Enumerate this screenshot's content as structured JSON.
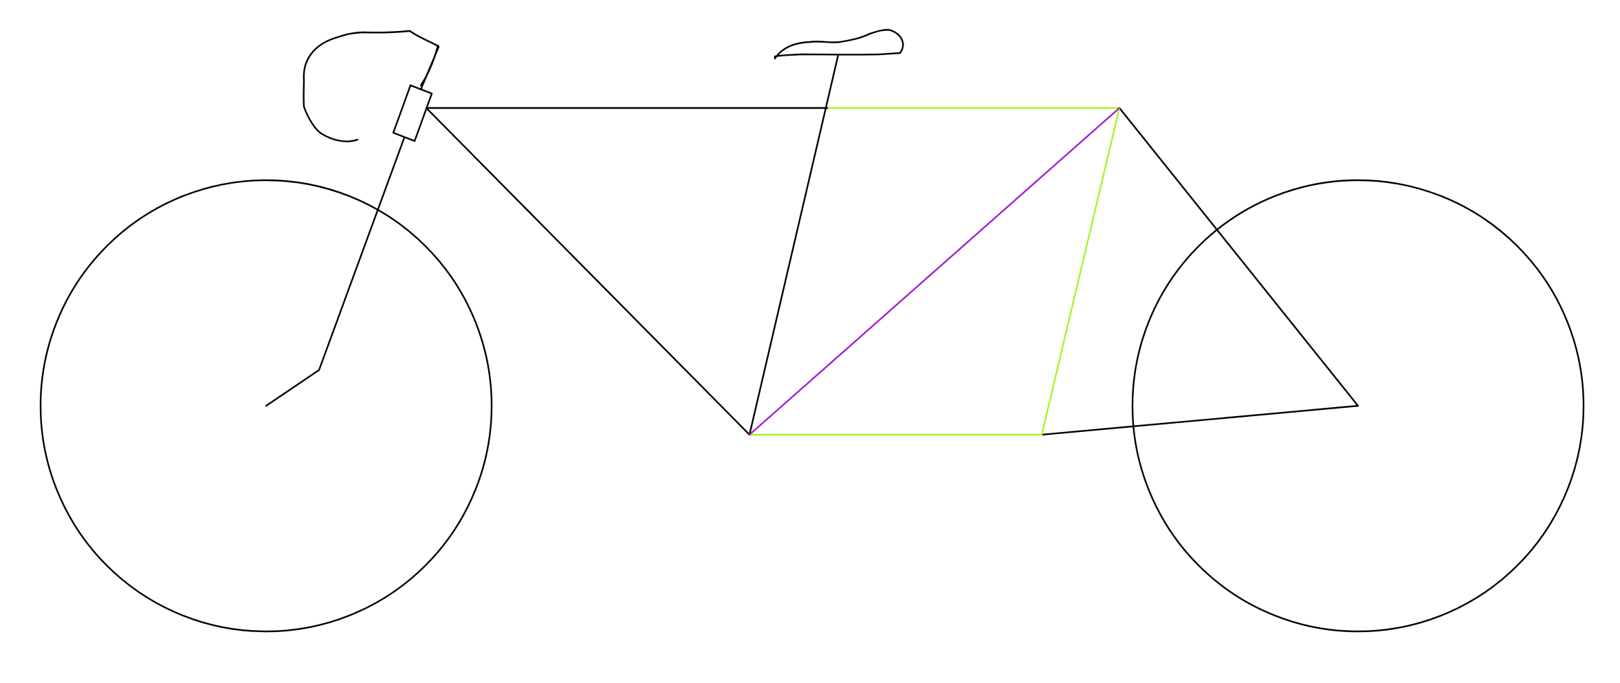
{
  "drawing": {
    "subject": "bicycle-line-drawing",
    "colors": {
      "frame": "#000000",
      "wheels": "#000000",
      "highlight_green": "#a6f52b",
      "highlight_purple": "#a31bd0",
      "background": "#ffffff"
    }
  }
}
